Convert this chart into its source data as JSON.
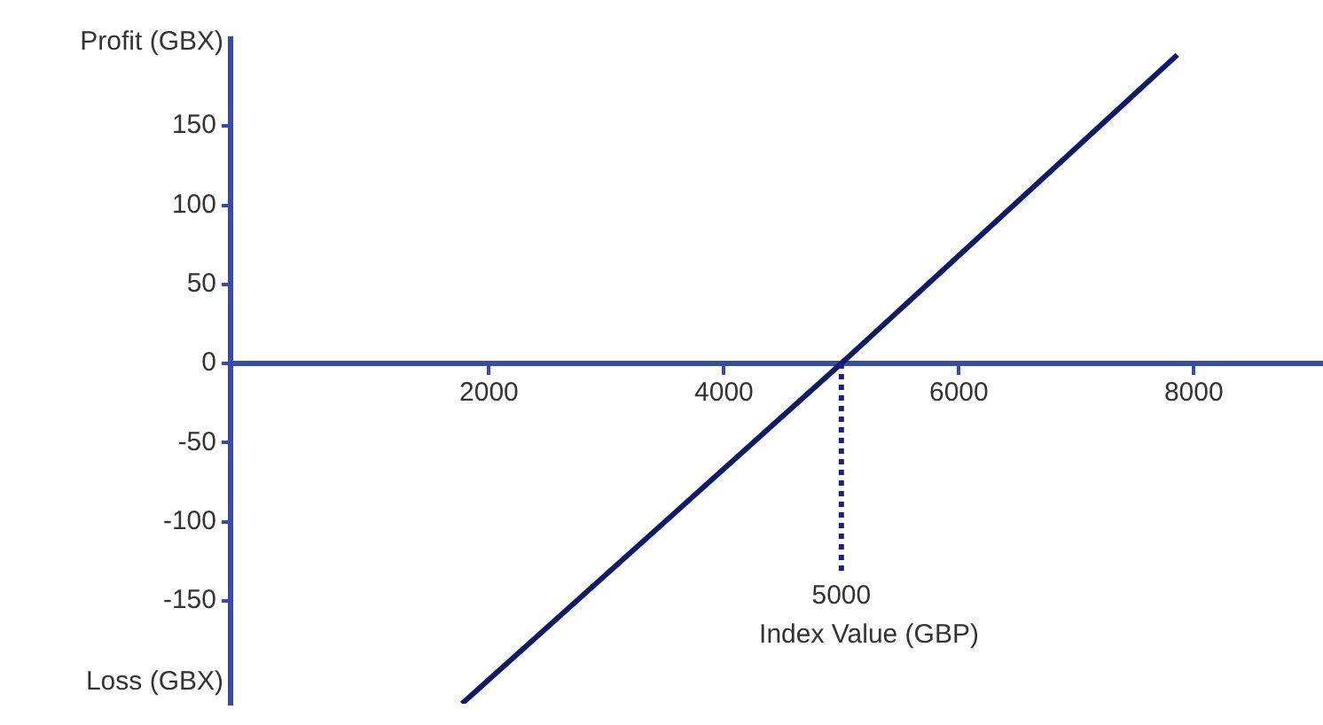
{
  "chart_data": {
    "type": "line",
    "ylabel": "Profit (GBX)",
    "xlabel": "Index Value (GBP)",
    "annotations": [
      "Loss (GBX)"
    ],
    "x": [
      1770,
      5000,
      7860
    ],
    "series": [
      {
        "color": "#111a66",
        "values": [
          -215,
          0,
          195
        ]
      }
    ],
    "xlim": [
      -200,
      9100
    ],
    "ylim": [
      -215,
      205
    ],
    "xticks": [
      2000,
      4000,
      6000,
      8000
    ],
    "yticks": [
      -150,
      -100,
      -50,
      0,
      50,
      100,
      150
    ],
    "ref_lines": [
      {
        "axis": "x",
        "value": 5000,
        "label": "5000",
        "color": "#1a237e",
        "line_style": "dotted"
      }
    ],
    "grid": false,
    "legend": false,
    "marker": "none",
    "line_style": "solid"
  }
}
